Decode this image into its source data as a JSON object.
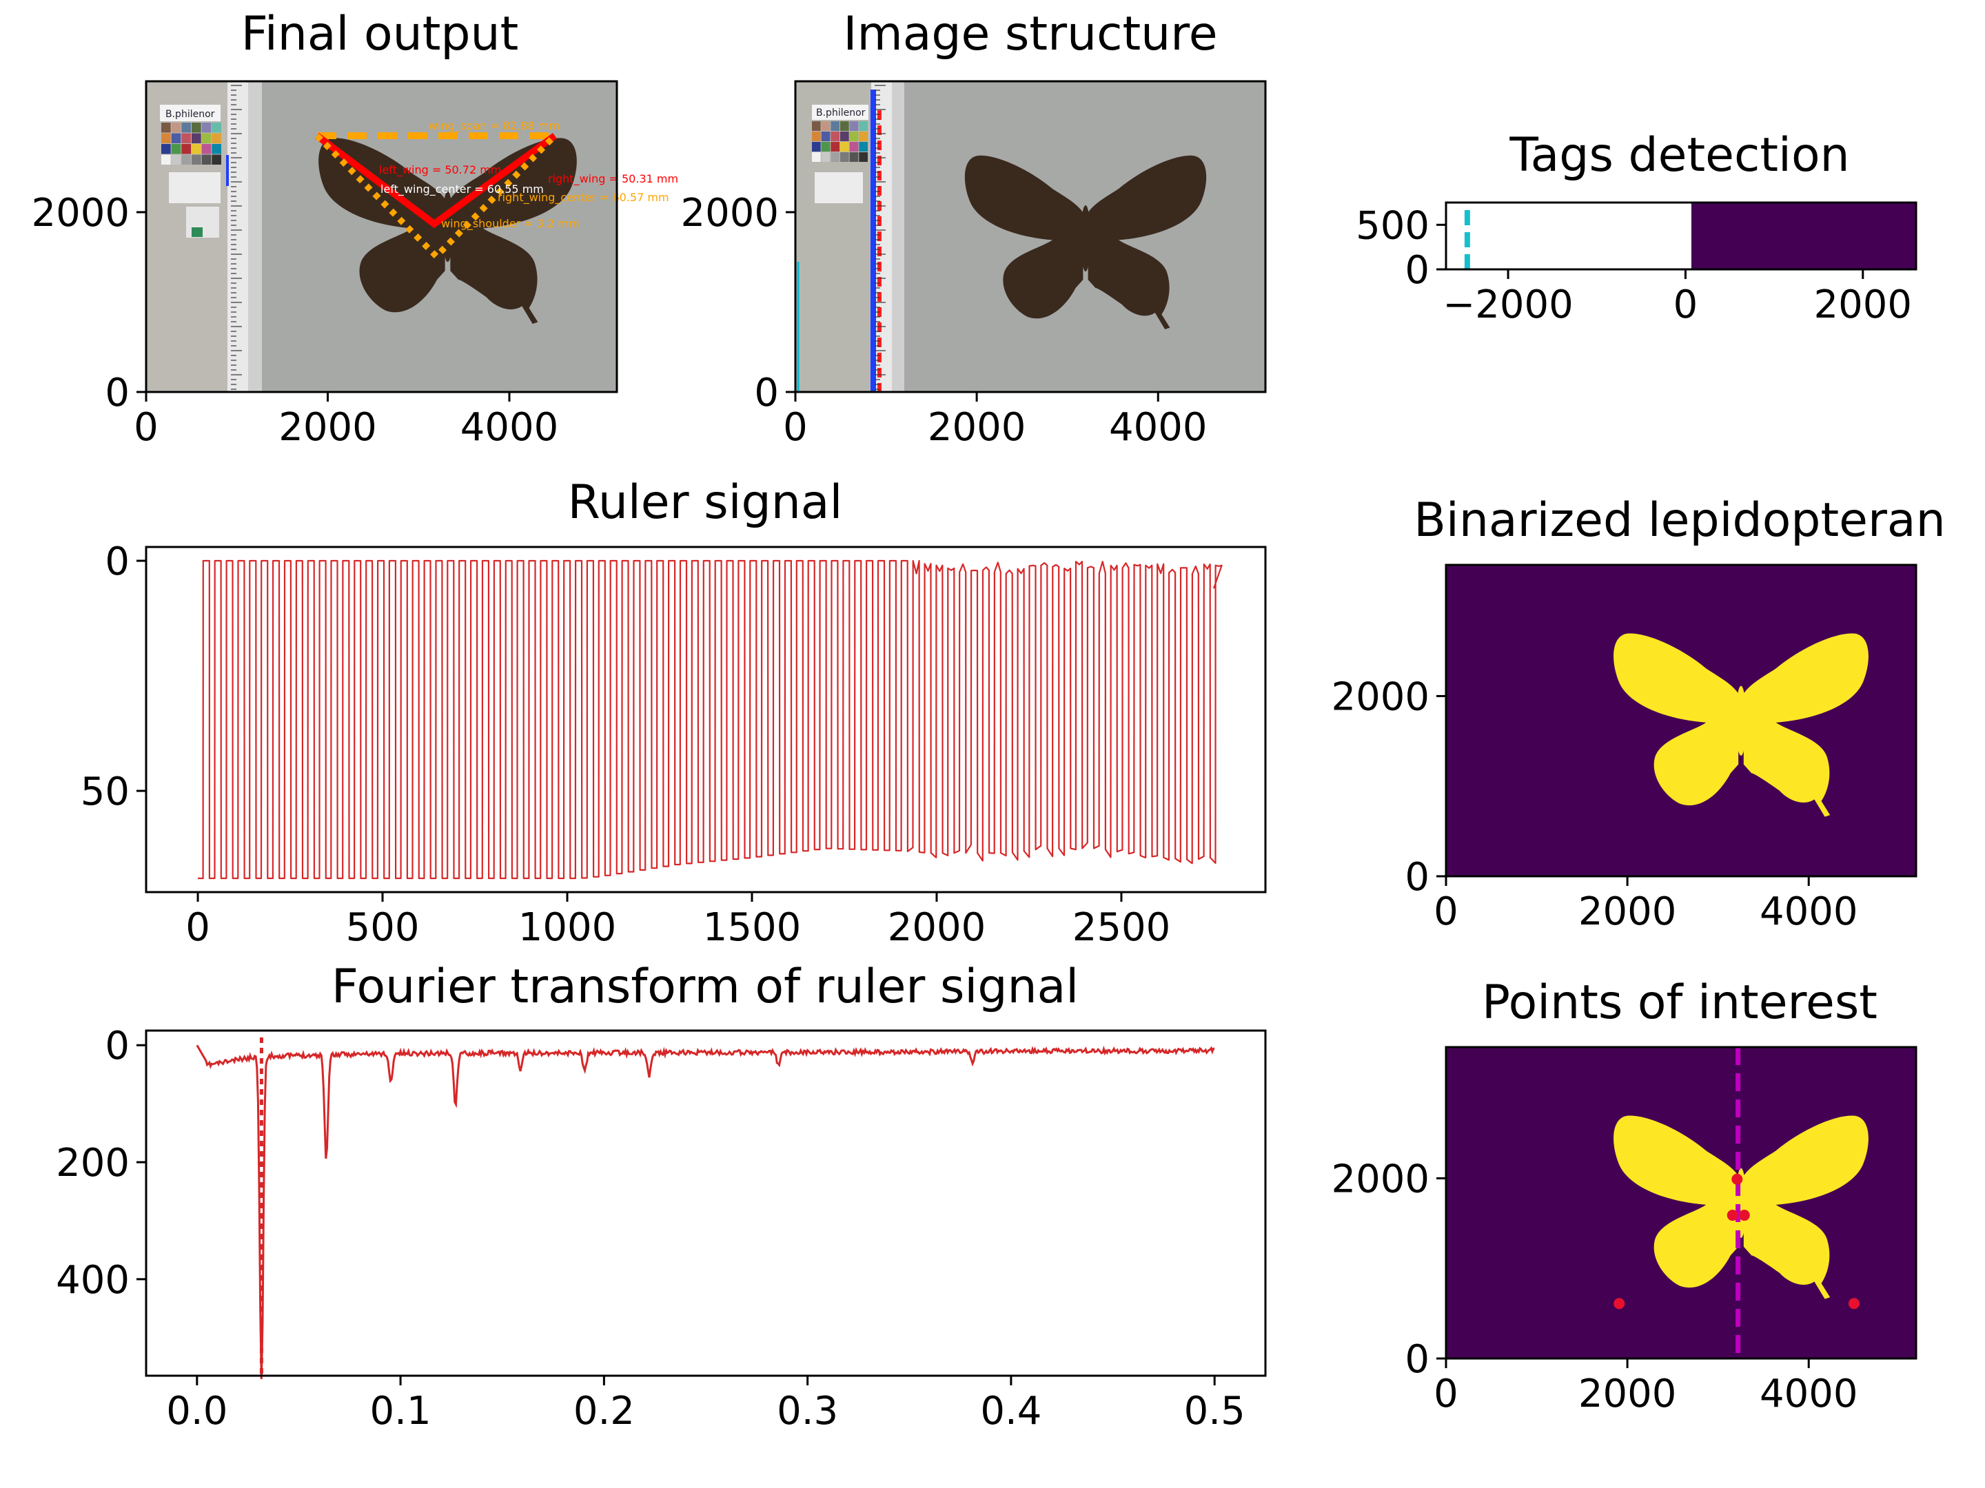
{
  "figure": {
    "colors": {
      "signal": "#d62728",
      "viridis_dark": "#440154",
      "viridis_bright": "#fde725",
      "tag_mark": "#17becf",
      "axis_mark": "#bf00bf",
      "ruler_blue": "#1f3fff",
      "ruler_red": "#ff2020",
      "wing_red": "#ff0000",
      "wing_orange": "#ffa500",
      "photo_bg": "#a7a9a7"
    }
  },
  "chart_data": [
    {
      "id": "final_output",
      "type": "image",
      "title": "Final output",
      "xlim": [
        0,
        5184
      ],
      "ylim": [
        3456,
        0
      ],
      "xticks": [
        0,
        2000,
        4000
      ],
      "yticks": [
        0,
        2000
      ],
      "specimen_label": "B.philenor",
      "annotations": [
        "wing_span = 82.88 mm",
        "left_wing = 50.72 mm",
        "right_wing = 50.31 mm",
        "left_wing_center = 60.55 mm",
        "right_wing_center = 60.57 mm",
        "wing_shoulder = 3.2 mm"
      ]
    },
    {
      "id": "image_structure",
      "type": "image",
      "title": "Image structure",
      "xlim": [
        0,
        5184
      ],
      "ylim": [
        3456,
        0
      ],
      "xticks": [
        0,
        2000,
        4000
      ],
      "yticks": [
        0,
        2000
      ],
      "specimen_label": "B.philenor"
    },
    {
      "id": "tags_detection",
      "type": "heatmap",
      "title": "Tags detection",
      "xlim": [
        -2700,
        2600
      ],
      "ylim": [
        750,
        0
      ],
      "xticks": [
        -2000,
        0,
        2000
      ],
      "ytick_labels": [
        "0",
        "500"
      ],
      "xtick_labels": [
        "−2000",
        "0",
        "2000"
      ],
      "tag_line_x": -2460
    },
    {
      "id": "ruler_signal",
      "type": "line",
      "title": "Ruler signal",
      "xlim": [
        -140,
        2890
      ],
      "ylim": [
        -3,
        72
      ],
      "xticks": [
        0,
        500,
        1000,
        1500,
        2000,
        2500
      ],
      "yticks": [
        0,
        50
      ],
      "period": 31.5,
      "length": 2750,
      "envelope": {
        "x": [
          0,
          1000,
          1040,
          1100,
          1300,
          1500,
          1600,
          1700,
          1900,
          2000,
          2200,
          2300,
          2450,
          2550,
          2700,
          2750
        ],
        "top": [
          69,
          69,
          69,
          68.5,
          66,
          64.5,
          63.5,
          62.5,
          63,
          63.5,
          63.5,
          62.5,
          62.5,
          64,
          65,
          64.5
        ]
      },
      "noise_start": 1900,
      "noise_amplitude": 3
    },
    {
      "id": "fourier",
      "type": "line",
      "title": "Fourier transform of ruler signal",
      "xlim": [
        -0.025,
        0.525
      ],
      "ylim": [
        -25,
        565
      ],
      "xticks": [
        0.0,
        0.1,
        0.2,
        0.3,
        0.4,
        0.5
      ],
      "xtick_labels": [
        "0.0",
        "0.1",
        "0.2",
        "0.3",
        "0.4",
        "0.5"
      ],
      "yticks": [
        0,
        200,
        400
      ],
      "peak_marker_x": 0.0317,
      "peaks": [
        {
          "x": 0.0317,
          "y": 550
        },
        {
          "x": 0.0635,
          "y": 178
        },
        {
          "x": 0.0952,
          "y": 50
        },
        {
          "x": 0.127,
          "y": 88
        },
        {
          "x": 0.159,
          "y": 30
        },
        {
          "x": 0.1905,
          "y": 32
        },
        {
          "x": 0.2222,
          "y": 40
        },
        {
          "x": 0.2857,
          "y": 22
        },
        {
          "x": 0.381,
          "y": 18
        }
      ],
      "baseline": [
        {
          "x": 0.0,
          "y": 0
        },
        {
          "x": 0.005,
          "y": 30
        },
        {
          "x": 0.03,
          "y": 15
        },
        {
          "x": 0.1,
          "y": 10
        },
        {
          "x": 0.3,
          "y": 8
        },
        {
          "x": 0.5,
          "y": 5
        }
      ]
    },
    {
      "id": "binarized",
      "type": "heatmap",
      "title": "Binarized lepidopteran",
      "xlim": [
        0,
        5184
      ],
      "ylim": [
        3456,
        0
      ],
      "xticks": [
        0,
        2000,
        4000
      ],
      "yticks": [
        0,
        2000
      ]
    },
    {
      "id": "points",
      "type": "heatmap",
      "title": "Points of interest",
      "xlim": [
        0,
        5184
      ],
      "ylim": [
        3456,
        0
      ],
      "xticks": [
        0,
        2000,
        4000
      ],
      "yticks": [
        0,
        2000
      ],
      "axis_line_x": 3220,
      "points": [
        {
          "x": 1910,
          "y": 610
        },
        {
          "x": 4500,
          "y": 610
        },
        {
          "x": 3160,
          "y": 1590
        },
        {
          "x": 3290,
          "y": 1590
        },
        {
          "x": 3210,
          "y": 1990
        }
      ]
    }
  ]
}
